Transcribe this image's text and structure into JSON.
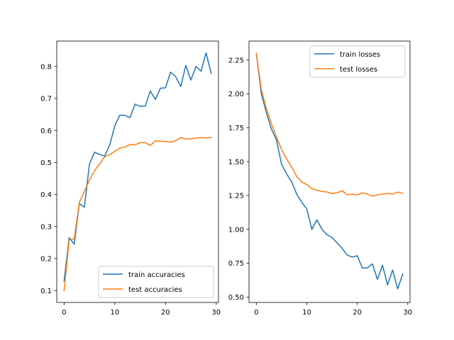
{
  "chart_data": [
    {
      "type": "line",
      "title": "",
      "xlabel": "",
      "ylabel": "",
      "xlim": [
        -1.45,
        30.45
      ],
      "ylim": [
        0.063,
        0.879
      ],
      "xticks": [
        0,
        10,
        20,
        30
      ],
      "yticks": [
        0.1,
        0.2,
        0.3,
        0.4,
        0.5,
        0.6,
        0.7,
        0.8
      ],
      "ytick_labels": [
        "0.1",
        "0.2",
        "0.3",
        "0.4",
        "0.5",
        "0.6",
        "0.7",
        "0.8"
      ],
      "grid": false,
      "legend_position": "lower-right",
      "x": [
        0,
        1,
        2,
        3,
        4,
        5,
        6,
        7,
        8,
        9,
        10,
        11,
        12,
        13,
        14,
        15,
        16,
        17,
        18,
        19,
        20,
        21,
        22,
        23,
        24,
        25,
        26,
        27,
        28,
        29
      ],
      "series": [
        {
          "name": "train accuracies",
          "color": "#1f77b4",
          "values": [
            0.13,
            0.265,
            0.245,
            0.372,
            0.36,
            0.495,
            0.532,
            0.525,
            0.52,
            0.555,
            0.615,
            0.648,
            0.647,
            0.64,
            0.682,
            0.675,
            0.676,
            0.723,
            0.697,
            0.732,
            0.733,
            0.782,
            0.768,
            0.737,
            0.803,
            0.757,
            0.8,
            0.785,
            0.842,
            0.778
          ]
        },
        {
          "name": "test accuracies",
          "color": "#ff7f0e",
          "values": [
            0.1,
            0.258,
            0.262,
            0.375,
            0.41,
            0.445,
            0.475,
            0.495,
            0.518,
            0.525,
            0.535,
            0.545,
            0.548,
            0.556,
            0.555,
            0.562,
            0.562,
            0.553,
            0.568,
            0.566,
            0.566,
            0.563,
            0.568,
            0.578,
            0.573,
            0.574,
            0.576,
            0.578,
            0.576,
            0.578
          ]
        }
      ]
    },
    {
      "type": "line",
      "title": "",
      "xlabel": "",
      "ylabel": "",
      "xlim": [
        -1.45,
        30.45
      ],
      "ylim": [
        0.46,
        2.39
      ],
      "xticks": [
        0,
        10,
        20,
        30
      ],
      "yticks": [
        0.5,
        0.75,
        1.0,
        1.25,
        1.5,
        1.75,
        2.0,
        2.25
      ],
      "ytick_labels": [
        "0.50",
        "0.75",
        "1.00",
        "1.25",
        "1.50",
        "1.75",
        "2.00",
        "2.25"
      ],
      "grid": false,
      "legend_position": "upper-right",
      "x": [
        0,
        1,
        2,
        3,
        4,
        5,
        6,
        7,
        8,
        9,
        10,
        11,
        12,
        13,
        14,
        15,
        16,
        17,
        18,
        19,
        20,
        21,
        22,
        23,
        24,
        25,
        26,
        27,
        28,
        29
      ],
      "series": [
        {
          "name": "train losses",
          "color": "#1f77b4",
          "values": [
            2.3,
            2.0,
            1.86,
            1.74,
            1.66,
            1.48,
            1.41,
            1.35,
            1.26,
            1.2,
            1.15,
            1.0,
            1.07,
            1.0,
            0.96,
            0.94,
            0.9,
            0.86,
            0.81,
            0.795,
            0.805,
            0.715,
            0.715,
            0.745,
            0.63,
            0.735,
            0.59,
            0.7,
            0.56,
            0.67
          ]
        },
        {
          "name": "test losses",
          "color": "#ff7f0e",
          "values": [
            2.3,
            2.03,
            1.89,
            1.78,
            1.68,
            1.59,
            1.52,
            1.46,
            1.39,
            1.35,
            1.33,
            1.3,
            1.29,
            1.28,
            1.275,
            1.265,
            1.27,
            1.285,
            1.255,
            1.26,
            1.255,
            1.27,
            1.26,
            1.245,
            1.255,
            1.26,
            1.265,
            1.26,
            1.275,
            1.265
          ]
        }
      ]
    }
  ]
}
